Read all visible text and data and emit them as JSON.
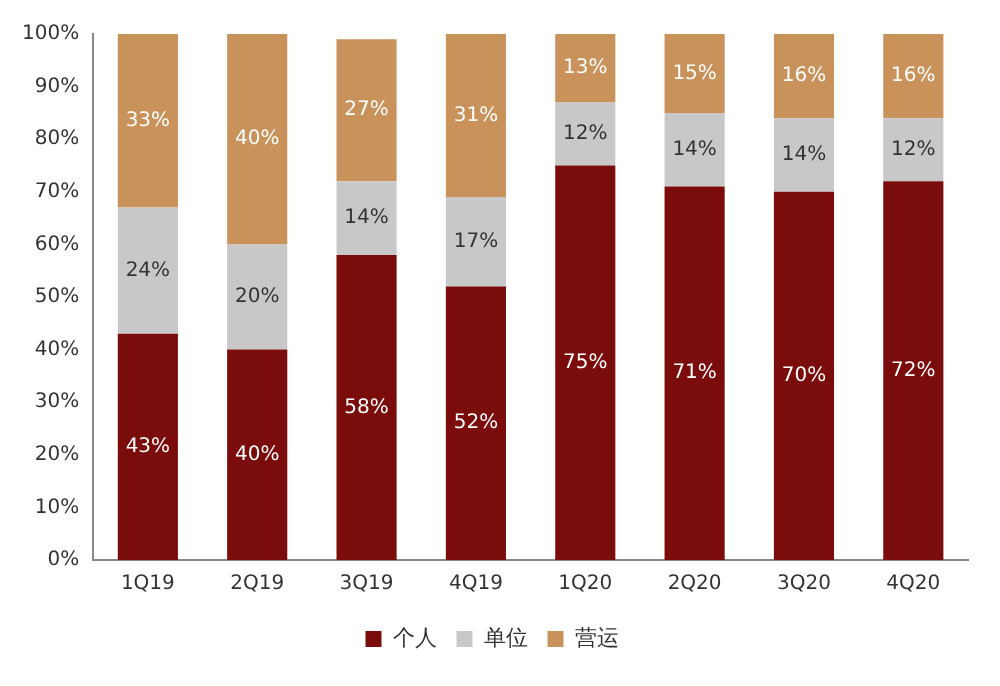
{
  "chart_data": {
    "type": "bar",
    "stacked": true,
    "categories": [
      "1Q19",
      "2Q19",
      "3Q19",
      "4Q19",
      "1Q20",
      "2Q20",
      "3Q20",
      "4Q20"
    ],
    "series": [
      {
        "name": "个人",
        "color": "#7b0c0c",
        "values": [
          43,
          40,
          58,
          52,
          75,
          71,
          70,
          72
        ],
        "value_labels": [
          "43%",
          "40%",
          "58%",
          "52%",
          "75%",
          "71%",
          "70%",
          "72%"
        ]
      },
      {
        "name": "单位",
        "color": "#c8c8c8",
        "values": [
          24,
          20,
          14,
          17,
          12,
          14,
          14,
          12
        ],
        "value_labels": [
          "24%",
          "20%",
          "14%",
          "17%",
          "12%",
          "14%",
          "14%",
          "12%"
        ]
      },
      {
        "name": "营运",
        "color": "#c9925a",
        "values": [
          33,
          40,
          27,
          31,
          13,
          15,
          16,
          16
        ],
        "value_labels": [
          "33%",
          "40%",
          "27%",
          "31%",
          "13%",
          "15%",
          "16%",
          "16%"
        ]
      }
    ],
    "ylim": [
      0,
      100
    ],
    "yticks": [
      {
        "value": 0,
        "label": "0%"
      },
      {
        "value": 10,
        "label": "10%"
      },
      {
        "value": 20,
        "label": "20%"
      },
      {
        "value": 30,
        "label": "30%"
      },
      {
        "value": 40,
        "label": "40%"
      },
      {
        "value": 50,
        "label": "50%"
      },
      {
        "value": 60,
        "label": "60%"
      },
      {
        "value": 70,
        "label": "70%"
      },
      {
        "value": 80,
        "label": "80%"
      },
      {
        "value": 90,
        "label": "90%"
      },
      {
        "value": 100,
        "label": "100%"
      }
    ],
    "grid": false,
    "legend": "bottom"
  }
}
